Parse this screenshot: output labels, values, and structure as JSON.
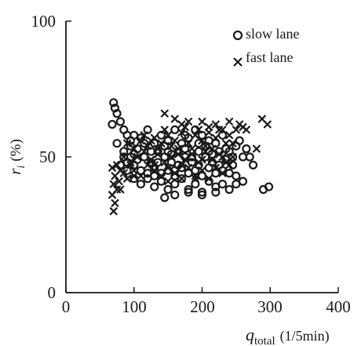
{
  "chart_data": {
    "type": "scatter",
    "title": "",
    "xlabel": {
      "base": "q",
      "sub": "total",
      "unit": "(1/5min)"
    },
    "ylabel": {
      "base": "r",
      "sub": "i",
      "unit": "(%)"
    },
    "xlim": [
      0,
      400
    ],
    "ylim": [
      0,
      100
    ],
    "xticks": [
      "0",
      "100",
      "200",
      "300",
      "400"
    ],
    "yticks": [
      "0",
      "50",
      "100"
    ],
    "grid": false,
    "legend_position": "top-right",
    "series": [
      {
        "name": "slow lane",
        "marker": "circle",
        "color": "#1a1a1a",
        "points": [
          [
            70,
            70
          ],
          [
            72,
            68
          ],
          [
            75,
            66
          ],
          [
            68,
            62
          ],
          [
            80,
            63
          ],
          [
            85,
            60
          ],
          [
            90,
            58
          ],
          [
            95,
            56
          ],
          [
            100,
            58
          ],
          [
            110,
            57
          ],
          [
            120,
            60
          ],
          [
            130,
            55
          ],
          [
            140,
            58
          ],
          [
            150,
            56
          ],
          [
            160,
            60
          ],
          [
            170,
            55
          ],
          [
            180,
            57
          ],
          [
            190,
            60
          ],
          [
            200,
            58
          ],
          [
            210,
            56
          ],
          [
            220,
            55
          ],
          [
            230,
            58
          ],
          [
            240,
            52
          ],
          [
            250,
            54
          ],
          [
            255,
            56
          ],
          [
            260,
            50
          ],
          [
            265,
            53
          ],
          [
            75,
            55
          ],
          [
            85,
            52
          ],
          [
            95,
            50
          ],
          [
            105,
            53
          ],
          [
            115,
            50
          ],
          [
            125,
            48
          ],
          [
            135,
            52
          ],
          [
            145,
            50
          ],
          [
            155,
            48
          ],
          [
            165,
            52
          ],
          [
            175,
            50
          ],
          [
            185,
            48
          ],
          [
            195,
            52
          ],
          [
            205,
            50
          ],
          [
            215,
            48
          ],
          [
            225,
            52
          ],
          [
            235,
            49
          ],
          [
            245,
            50
          ],
          [
            80,
            47
          ],
          [
            90,
            45
          ],
          [
            100,
            47
          ],
          [
            110,
            45
          ],
          [
            120,
            44
          ],
          [
            130,
            46
          ],
          [
            140,
            44
          ],
          [
            150,
            45
          ],
          [
            160,
            43
          ],
          [
            170,
            46
          ],
          [
            180,
            44
          ],
          [
            190,
            45
          ],
          [
            200,
            43
          ],
          [
            210,
            46
          ],
          [
            220,
            44
          ],
          [
            230,
            45
          ],
          [
            240,
            44
          ],
          [
            250,
            43
          ],
          [
            100,
            42
          ],
          [
            110,
            40
          ],
          [
            120,
            42
          ],
          [
            130,
            39
          ],
          [
            140,
            41
          ],
          [
            150,
            38
          ],
          [
            160,
            40
          ],
          [
            170,
            42
          ],
          [
            180,
            38
          ],
          [
            190,
            40
          ],
          [
            200,
            37
          ],
          [
            210,
            41
          ],
          [
            220,
            39
          ],
          [
            230,
            40
          ],
          [
            240,
            38
          ],
          [
            250,
            40
          ],
          [
            260,
            41
          ],
          [
            145,
            35
          ],
          [
            160,
            36
          ],
          [
            180,
            37
          ],
          [
            200,
            36
          ],
          [
            220,
            37
          ],
          [
            290,
            38
          ],
          [
            298,
            39
          ],
          [
            270,
            50
          ],
          [
            275,
            47
          ],
          [
            85,
            50
          ],
          [
            95,
            54
          ],
          [
            105,
            49
          ],
          [
            115,
            55
          ],
          [
            125,
            52
          ],
          [
            135,
            48
          ],
          [
            145,
            54
          ],
          [
            155,
            51
          ],
          [
            165,
            47
          ],
          [
            175,
            53
          ],
          [
            185,
            50
          ],
          [
            195,
            47
          ],
          [
            205,
            54
          ],
          [
            215,
            51
          ],
          [
            225,
            47
          ],
          [
            235,
            53
          ],
          [
            90,
            48
          ],
          [
            100,
            51
          ],
          [
            150,
            52
          ],
          [
            210,
            52
          ],
          [
            245,
            47
          ],
          [
            175,
            58
          ],
          [
            195,
            55
          ],
          [
            160,
            45
          ],
          [
            130,
            43
          ]
        ]
      },
      {
        "name": "fast lane",
        "marker": "x",
        "color": "#1a1a1a",
        "points": [
          [
            70,
            30
          ],
          [
            72,
            33
          ],
          [
            68,
            36
          ],
          [
            75,
            38
          ],
          [
            70,
            40
          ],
          [
            72,
            43
          ],
          [
            78,
            41
          ],
          [
            80,
            45
          ],
          [
            75,
            47
          ],
          [
            68,
            46
          ],
          [
            85,
            44
          ],
          [
            90,
            42
          ],
          [
            95,
            47
          ],
          [
            100,
            45
          ],
          [
            110,
            43
          ],
          [
            120,
            47
          ],
          [
            130,
            45
          ],
          [
            140,
            43
          ],
          [
            150,
            46
          ],
          [
            160,
            44
          ],
          [
            170,
            42
          ],
          [
            180,
            46
          ],
          [
            190,
            43
          ],
          [
            200,
            45
          ],
          [
            210,
            42
          ],
          [
            220,
            46
          ],
          [
            230,
            44
          ],
          [
            240,
            47
          ],
          [
            85,
            50
          ],
          [
            95,
            48
          ],
          [
            105,
            50
          ],
          [
            115,
            52
          ],
          [
            125,
            49
          ],
          [
            135,
            51
          ],
          [
            145,
            48
          ],
          [
            155,
            50
          ],
          [
            165,
            53
          ],
          [
            175,
            49
          ],
          [
            185,
            51
          ],
          [
            195,
            48
          ],
          [
            205,
            52
          ],
          [
            215,
            49
          ],
          [
            225,
            51
          ],
          [
            235,
            48
          ],
          [
            245,
            50
          ],
          [
            90,
            55
          ],
          [
            100,
            53
          ],
          [
            110,
            56
          ],
          [
            120,
            54
          ],
          [
            130,
            57
          ],
          [
            140,
            55
          ],
          [
            150,
            58
          ],
          [
            160,
            56
          ],
          [
            170,
            59
          ],
          [
            180,
            55
          ],
          [
            190,
            58
          ],
          [
            200,
            56
          ],
          [
            210,
            59
          ],
          [
            220,
            57
          ],
          [
            230,
            60
          ],
          [
            240,
            58
          ],
          [
            250,
            60
          ],
          [
            145,
            66
          ],
          [
            160,
            64
          ],
          [
            170,
            62
          ],
          [
            180,
            63
          ],
          [
            200,
            63
          ],
          [
            210,
            61
          ],
          [
            220,
            62
          ],
          [
            240,
            63
          ],
          [
            255,
            62
          ],
          [
            260,
            61
          ],
          [
            265,
            60
          ],
          [
            280,
            53
          ],
          [
            288,
            64
          ],
          [
            296,
            62
          ],
          [
            145,
            60
          ],
          [
            175,
            61
          ],
          [
            195,
            60
          ],
          [
            225,
            60
          ],
          [
            115,
            58
          ],
          [
            125,
            56
          ],
          [
            135,
            53
          ],
          [
            155,
            54
          ],
          [
            165,
            51
          ],
          [
            185,
            53
          ],
          [
            205,
            54
          ],
          [
            215,
            53
          ],
          [
            235,
            55
          ],
          [
            245,
            55
          ],
          [
            80,
            38
          ],
          [
            100,
            43
          ],
          [
            130,
            47
          ],
          [
            170,
            47
          ],
          [
            200,
            49
          ],
          [
            150,
            41
          ],
          [
            190,
            42
          ],
          [
            230,
            50
          ]
        ]
      }
    ]
  }
}
